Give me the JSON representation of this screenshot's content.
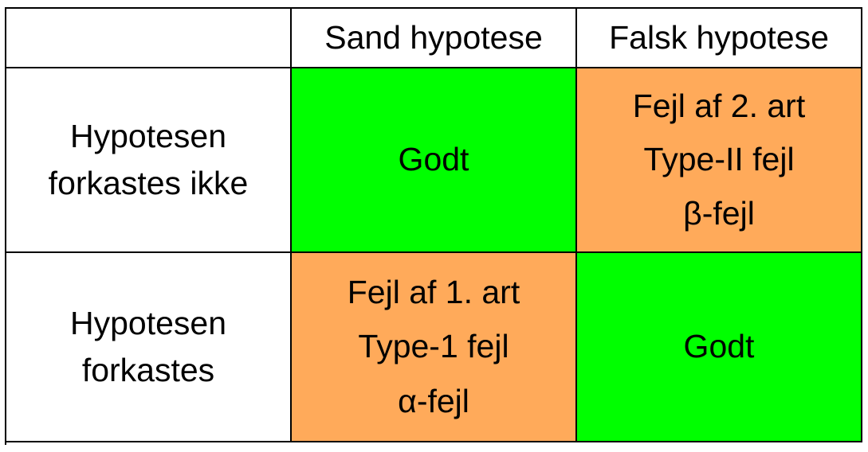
{
  "colors": {
    "good": "#00ff00",
    "error": "#ffaa5a",
    "header_bg": "#ffffff",
    "border": "#000000"
  },
  "header": {
    "corner": "",
    "col1": "Sand hypotese",
    "col2": "Falsk hypotese"
  },
  "rows": [
    {
      "label_lines": [
        "Hypotesen",
        "forkastes ikke"
      ],
      "cells": [
        {
          "kind": "good",
          "lines": [
            "Godt"
          ]
        },
        {
          "kind": "error",
          "lines": [
            "Fejl af 2. art",
            "Type-II fejl",
            "β-fejl"
          ]
        }
      ]
    },
    {
      "label_lines": [
        "Hypotesen",
        "forkastes"
      ],
      "cells": [
        {
          "kind": "error",
          "lines": [
            "Fejl af 1. art",
            "Type-1 fejl",
            "α-fejl"
          ]
        },
        {
          "kind": "good",
          "lines": [
            "Godt"
          ]
        }
      ]
    }
  ]
}
